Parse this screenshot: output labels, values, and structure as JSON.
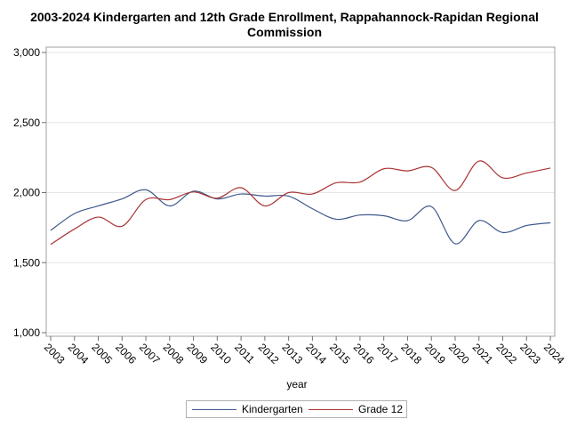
{
  "chart_data": {
    "type": "line",
    "title_line1": "2003-2024 Kindergarten and 12th Grade Enrollment, Rappahannock-Rapidan Regional",
    "title_line2": "Commission",
    "xlabel": "year",
    "ylabel": "",
    "x": [
      2003,
      2004,
      2005,
      2006,
      2007,
      2008,
      2009,
      2010,
      2011,
      2012,
      2013,
      2014,
      2015,
      2016,
      2017,
      2018,
      2019,
      2020,
      2021,
      2022,
      2023,
      2024
    ],
    "ylim": [
      1000,
      3000
    ],
    "yticks": [
      1000,
      1500,
      2000,
      2500,
      3000
    ],
    "ytick_labels": [
      "1,000",
      "1,500",
      "2,000",
      "2,500",
      "3,000"
    ],
    "series": [
      {
        "name": "Kindergarten",
        "color": "#3e5a8c",
        "values": [
          1730,
          1850,
          1905,
          1955,
          2020,
          1905,
          2010,
          1955,
          1990,
          1975,
          1975,
          1885,
          1810,
          1840,
          1835,
          1800,
          1900,
          1635,
          1800,
          1715,
          1765,
          1785
        ]
      },
      {
        "name": "Grade 12",
        "color": "#a93333",
        "values": [
          1630,
          1740,
          1825,
          1760,
          1950,
          1950,
          2005,
          1960,
          2035,
          1905,
          2000,
          1990,
          2070,
          2075,
          2170,
          2155,
          2180,
          2015,
          2225,
          2105,
          2140,
          2175
        ]
      }
    ],
    "grid": "horizontal",
    "legend_position": "bottom"
  }
}
